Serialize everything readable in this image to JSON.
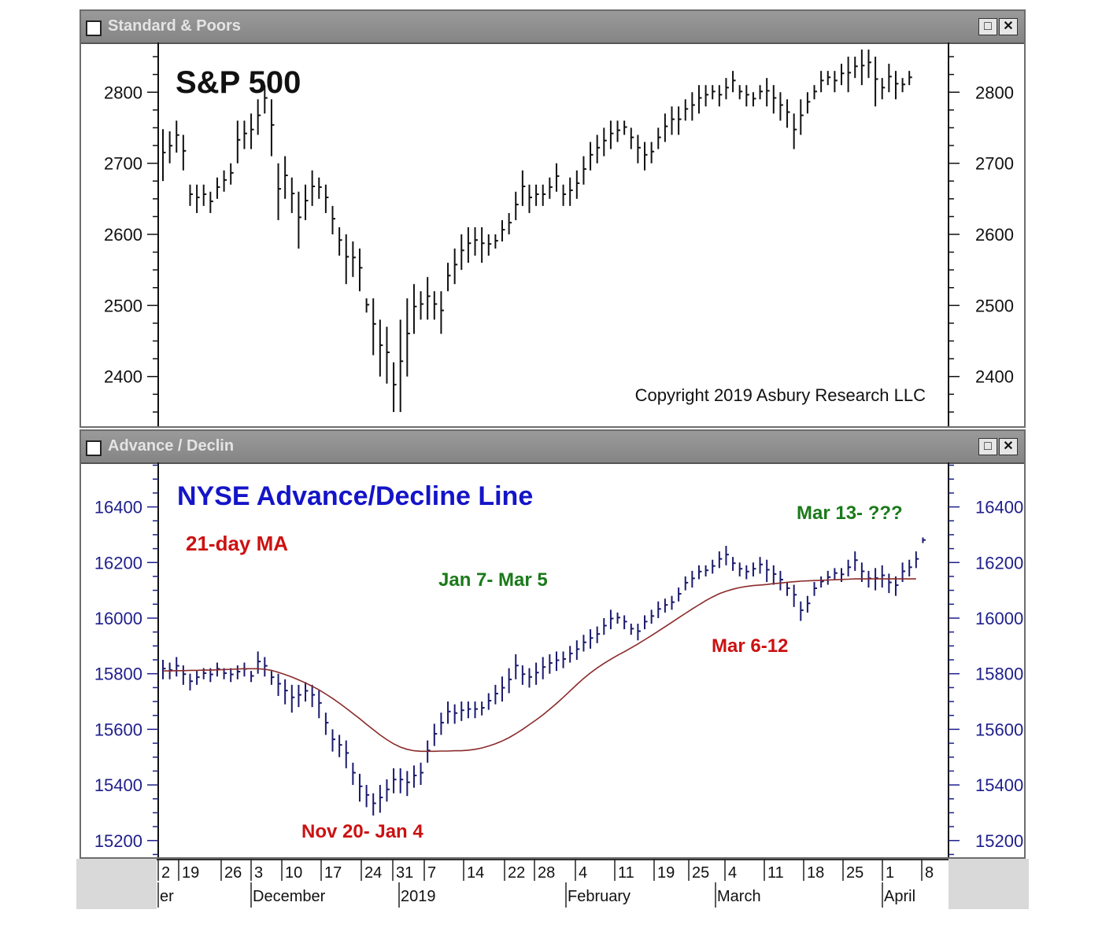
{
  "panels": {
    "sp": {
      "window_title": "Standard & Poors",
      "maximize_icon": "maximize-icon",
      "close_icon": "close-icon"
    },
    "ad": {
      "window_title": "Advance / Declin",
      "maximize_icon": "maximize-icon",
      "close_icon": "close-icon"
    }
  },
  "x_axis": {
    "day_labels": [
      "2",
      "19",
      "26",
      "3",
      "10",
      "17",
      "24",
      "31",
      "7",
      "14",
      "22",
      "28",
      "4",
      "11",
      "19",
      "25",
      "4",
      "11",
      "18",
      "25",
      "1",
      "8"
    ],
    "month_labels": [
      "er",
      "December",
      "2019",
      "February",
      "March",
      "April"
    ]
  },
  "colors": {
    "price_bars": "#111111",
    "ad_bars": "#1a1a6e",
    "moving_average": "#8b2a2a",
    "blue_title": "#1414c8",
    "red_text": "#cc1111",
    "green_text": "#1a7a1a",
    "axis_blue": "#1e1e8c"
  },
  "chart_data": [
    {
      "type": "ohlc",
      "title": "S&P 500",
      "annotation": "Copyright 2019 Asbury Research LLC",
      "y_ticks": [
        2800,
        2700,
        2600,
        2500,
        2400
      ],
      "ylim": [
        2330,
        2870
      ],
      "bars": [
        [
          2675,
          2748
        ],
        [
          2700,
          2745
        ],
        [
          2715,
          2760
        ],
        [
          2690,
          2740
        ],
        [
          2640,
          2670
        ],
        [
          2630,
          2670
        ],
        [
          2640,
          2670
        ],
        [
          2630,
          2660
        ],
        [
          2650,
          2680
        ],
        [
          2660,
          2690
        ],
        [
          2670,
          2700
        ],
        [
          2700,
          2760
        ],
        [
          2720,
          2760
        ],
        [
          2720,
          2770
        ],
        [
          2740,
          2790
        ],
        [
          2770,
          2810
        ],
        [
          2710,
          2790
        ],
        [
          2620,
          2700
        ],
        [
          2650,
          2710
        ],
        [
          2630,
          2680
        ],
        [
          2580,
          2660
        ],
        [
          2620,
          2670
        ],
        [
          2640,
          2690
        ],
        [
          2650,
          2680
        ],
        [
          2630,
          2670
        ],
        [
          2600,
          2640
        ],
        [
          2570,
          2610
        ],
        [
          2530,
          2600
        ],
        [
          2540,
          2590
        ],
        [
          2520,
          2580
        ],
        [
          2490,
          2510
        ],
        [
          2430,
          2510
        ],
        [
          2400,
          2480
        ],
        [
          2390,
          2470
        ],
        [
          2350,
          2420
        ],
        [
          2350,
          2480
        ],
        [
          2400,
          2510
        ],
        [
          2460,
          2530
        ],
        [
          2480,
          2520
        ],
        [
          2480,
          2540
        ],
        [
          2480,
          2520
        ],
        [
          2460,
          2520
        ],
        [
          2520,
          2560
        ],
        [
          2530,
          2580
        ],
        [
          2550,
          2600
        ],
        [
          2560,
          2610
        ],
        [
          2570,
          2610
        ],
        [
          2560,
          2610
        ],
        [
          2570,
          2600
        ],
        [
          2580,
          2600
        ],
        [
          2590,
          2620
        ],
        [
          2600,
          2630
        ],
        [
          2620,
          2660
        ],
        [
          2640,
          2690
        ],
        [
          2630,
          2670
        ],
        [
          2640,
          2670
        ],
        [
          2640,
          2670
        ],
        [
          2650,
          2680
        ],
        [
          2660,
          2700
        ],
        [
          2640,
          2670
        ],
        [
          2640,
          2680
        ],
        [
          2650,
          2690
        ],
        [
          2670,
          2710
        ],
        [
          2690,
          2730
        ],
        [
          2700,
          2740
        ],
        [
          2710,
          2750
        ],
        [
          2720,
          2760
        ],
        [
          2730,
          2760
        ],
        [
          2740,
          2760
        ],
        [
          2720,
          2750
        ],
        [
          2700,
          2740
        ],
        [
          2690,
          2730
        ],
        [
          2700,
          2730
        ],
        [
          2720,
          2750
        ],
        [
          2730,
          2770
        ],
        [
          2740,
          2780
        ],
        [
          2740,
          2780
        ],
        [
          2760,
          2790
        ],
        [
          2760,
          2800
        ],
        [
          2770,
          2810
        ],
        [
          2780,
          2810
        ],
        [
          2790,
          2810
        ],
        [
          2780,
          2810
        ],
        [
          2790,
          2820
        ],
        [
          2800,
          2830
        ],
        [
          2790,
          2810
        ],
        [
          2780,
          2810
        ],
        [
          2780,
          2800
        ],
        [
          2790,
          2810
        ],
        [
          2780,
          2820
        ],
        [
          2770,
          2810
        ],
        [
          2760,
          2800
        ],
        [
          2750,
          2790
        ],
        [
          2720,
          2770
        ],
        [
          2740,
          2790
        ],
        [
          2770,
          2800
        ],
        [
          2790,
          2810
        ],
        [
          2800,
          2830
        ],
        [
          2810,
          2830
        ],
        [
          2800,
          2830
        ],
        [
          2810,
          2840
        ],
        [
          2800,
          2850
        ],
        [
          2820,
          2850
        ],
        [
          2810,
          2860
        ],
        [
          2820,
          2860
        ],
        [
          2780,
          2850
        ],
        [
          2790,
          2820
        ],
        [
          2800,
          2840
        ],
        [
          2790,
          2830
        ],
        [
          2800,
          2820
        ],
        [
          2810,
          2830
        ]
      ]
    },
    {
      "type": "ohlc",
      "title": "NYSE Advance/Decline Line",
      "annotations": [
        "21-day MA",
        "Jan 7- Mar 5",
        "Nov 20- Jan 4",
        "Mar 6-12",
        "Mar 13- ???"
      ],
      "y_ticks": [
        16400,
        16200,
        16000,
        15800,
        15600,
        15400,
        15200
      ],
      "ylim": [
        15140,
        16560
      ],
      "bars": [
        [
          15780,
          15850
        ],
        [
          15780,
          15840
        ],
        [
          15790,
          15860
        ],
        [
          15760,
          15830
        ],
        [
          15740,
          15800
        ],
        [
          15760,
          15810
        ],
        [
          15780,
          15820
        ],
        [
          15770,
          15820
        ],
        [
          15790,
          15840
        ],
        [
          15780,
          15820
        ],
        [
          15770,
          15820
        ],
        [
          15780,
          15830
        ],
        [
          15790,
          15840
        ],
        [
          15770,
          15810
        ],
        [
          15800,
          15880
        ],
        [
          15790,
          15860
        ],
        [
          15760,
          15810
        ],
        [
          15720,
          15800
        ],
        [
          15690,
          15780
        ],
        [
          15660,
          15760
        ],
        [
          15680,
          15760
        ],
        [
          15700,
          15770
        ],
        [
          15680,
          15760
        ],
        [
          15640,
          15740
        ],
        [
          15580,
          15660
        ],
        [
          15520,
          15600
        ],
        [
          15500,
          15580
        ],
        [
          15460,
          15560
        ],
        [
          15400,
          15480
        ],
        [
          15340,
          15440
        ],
        [
          15320,
          15400
        ],
        [
          15290,
          15370
        ],
        [
          15300,
          15400
        ],
        [
          15340,
          15420
        ],
        [
          15370,
          15460
        ],
        [
          15370,
          15460
        ],
        [
          15360,
          15450
        ],
        [
          15390,
          15470
        ],
        [
          15400,
          15480
        ],
        [
          15480,
          15560
        ],
        [
          15540,
          15620
        ],
        [
          15580,
          15660
        ],
        [
          15620,
          15700
        ],
        [
          15620,
          15690
        ],
        [
          15630,
          15700
        ],
        [
          15640,
          15700
        ],
        [
          15640,
          15700
        ],
        [
          15650,
          15700
        ],
        [
          15670,
          15730
        ],
        [
          15690,
          15760
        ],
        [
          15700,
          15790
        ],
        [
          15730,
          15820
        ],
        [
          15780,
          15870
        ],
        [
          15760,
          15830
        ],
        [
          15750,
          15820
        ],
        [
          15760,
          15840
        ],
        [
          15780,
          15860
        ],
        [
          15800,
          15870
        ],
        [
          15810,
          15880
        ],
        [
          15820,
          15880
        ],
        [
          15840,
          15900
        ],
        [
          15850,
          15920
        ],
        [
          15880,
          15940
        ],
        [
          15890,
          15960
        ],
        [
          15910,
          15970
        ],
        [
          15940,
          16000
        ],
        [
          15960,
          16030
        ],
        [
          15980,
          16020
        ],
        [
          15960,
          16010
        ],
        [
          15940,
          15980
        ],
        [
          15920,
          15980
        ],
        [
          15960,
          16010
        ],
        [
          15980,
          16030
        ],
        [
          16000,
          16060
        ],
        [
          16020,
          16070
        ],
        [
          16030,
          16080
        ],
        [
          16060,
          16110
        ],
        [
          16100,
          16150
        ],
        [
          16110,
          16170
        ],
        [
          16140,
          16190
        ],
        [
          16150,
          16190
        ],
        [
          16160,
          16210
        ],
        [
          16180,
          16240
        ],
        [
          16190,
          16260
        ],
        [
          16170,
          16220
        ],
        [
          16150,
          16200
        ],
        [
          16140,
          16190
        ],
        [
          16150,
          16200
        ],
        [
          16160,
          16220
        ],
        [
          16130,
          16210
        ],
        [
          16120,
          16190
        ],
        [
          16100,
          16170
        ],
        [
          16080,
          16130
        ],
        [
          16040,
          16120
        ],
        [
          15990,
          16060
        ],
        [
          16020,
          16080
        ],
        [
          16080,
          16130
        ],
        [
          16110,
          16150
        ],
        [
          16120,
          16170
        ],
        [
          16140,
          16180
        ],
        [
          16130,
          16180
        ],
        [
          16150,
          16210
        ],
        [
          16170,
          16240
        ],
        [
          16130,
          16200
        ],
        [
          16110,
          16170
        ],
        [
          16100,
          16180
        ],
        [
          16110,
          16190
        ],
        [
          16090,
          16160
        ],
        [
          16080,
          16150
        ],
        [
          16130,
          16200
        ],
        [
          16150,
          16210
        ],
        [
          16180,
          16240
        ],
        [
          16270,
          16290
        ]
      ],
      "moving_average": [
        15810,
        15810,
        15811,
        15811,
        15812,
        15812,
        15813,
        15813,
        15814,
        15815,
        15816,
        15817,
        15818,
        15818,
        15818,
        15816,
        15812,
        15805,
        15797,
        15788,
        15778,
        15767,
        15755,
        15742,
        15727,
        15711,
        15694,
        15676,
        15657,
        15638,
        15618,
        15599,
        15580,
        15563,
        15548,
        15536,
        15528,
        15523,
        15521,
        15521,
        15521,
        15522,
        15522,
        15523,
        15523,
        15525,
        15528,
        15533,
        15540,
        15548,
        15558,
        15570,
        15584,
        15600,
        15617,
        15634,
        15652,
        15672,
        15693,
        15715,
        15738,
        15761,
        15783,
        15803,
        15821,
        15837,
        15852,
        15866,
        15879,
        15893,
        15907,
        15922,
        15937,
        15953,
        15969,
        15985,
        16001,
        16017,
        16033,
        16048,
        16063,
        16076,
        16088,
        16097,
        16104,
        16110,
        16114,
        16117,
        16119,
        16121,
        16124,
        16126,
        16129,
        16131,
        16133,
        16134,
        16135,
        16136,
        16137,
        16138,
        16139,
        16140,
        16141,
        16141,
        16141,
        16141,
        16141,
        16141,
        16141,
        16141,
        16141,
        16141
      ]
    }
  ]
}
